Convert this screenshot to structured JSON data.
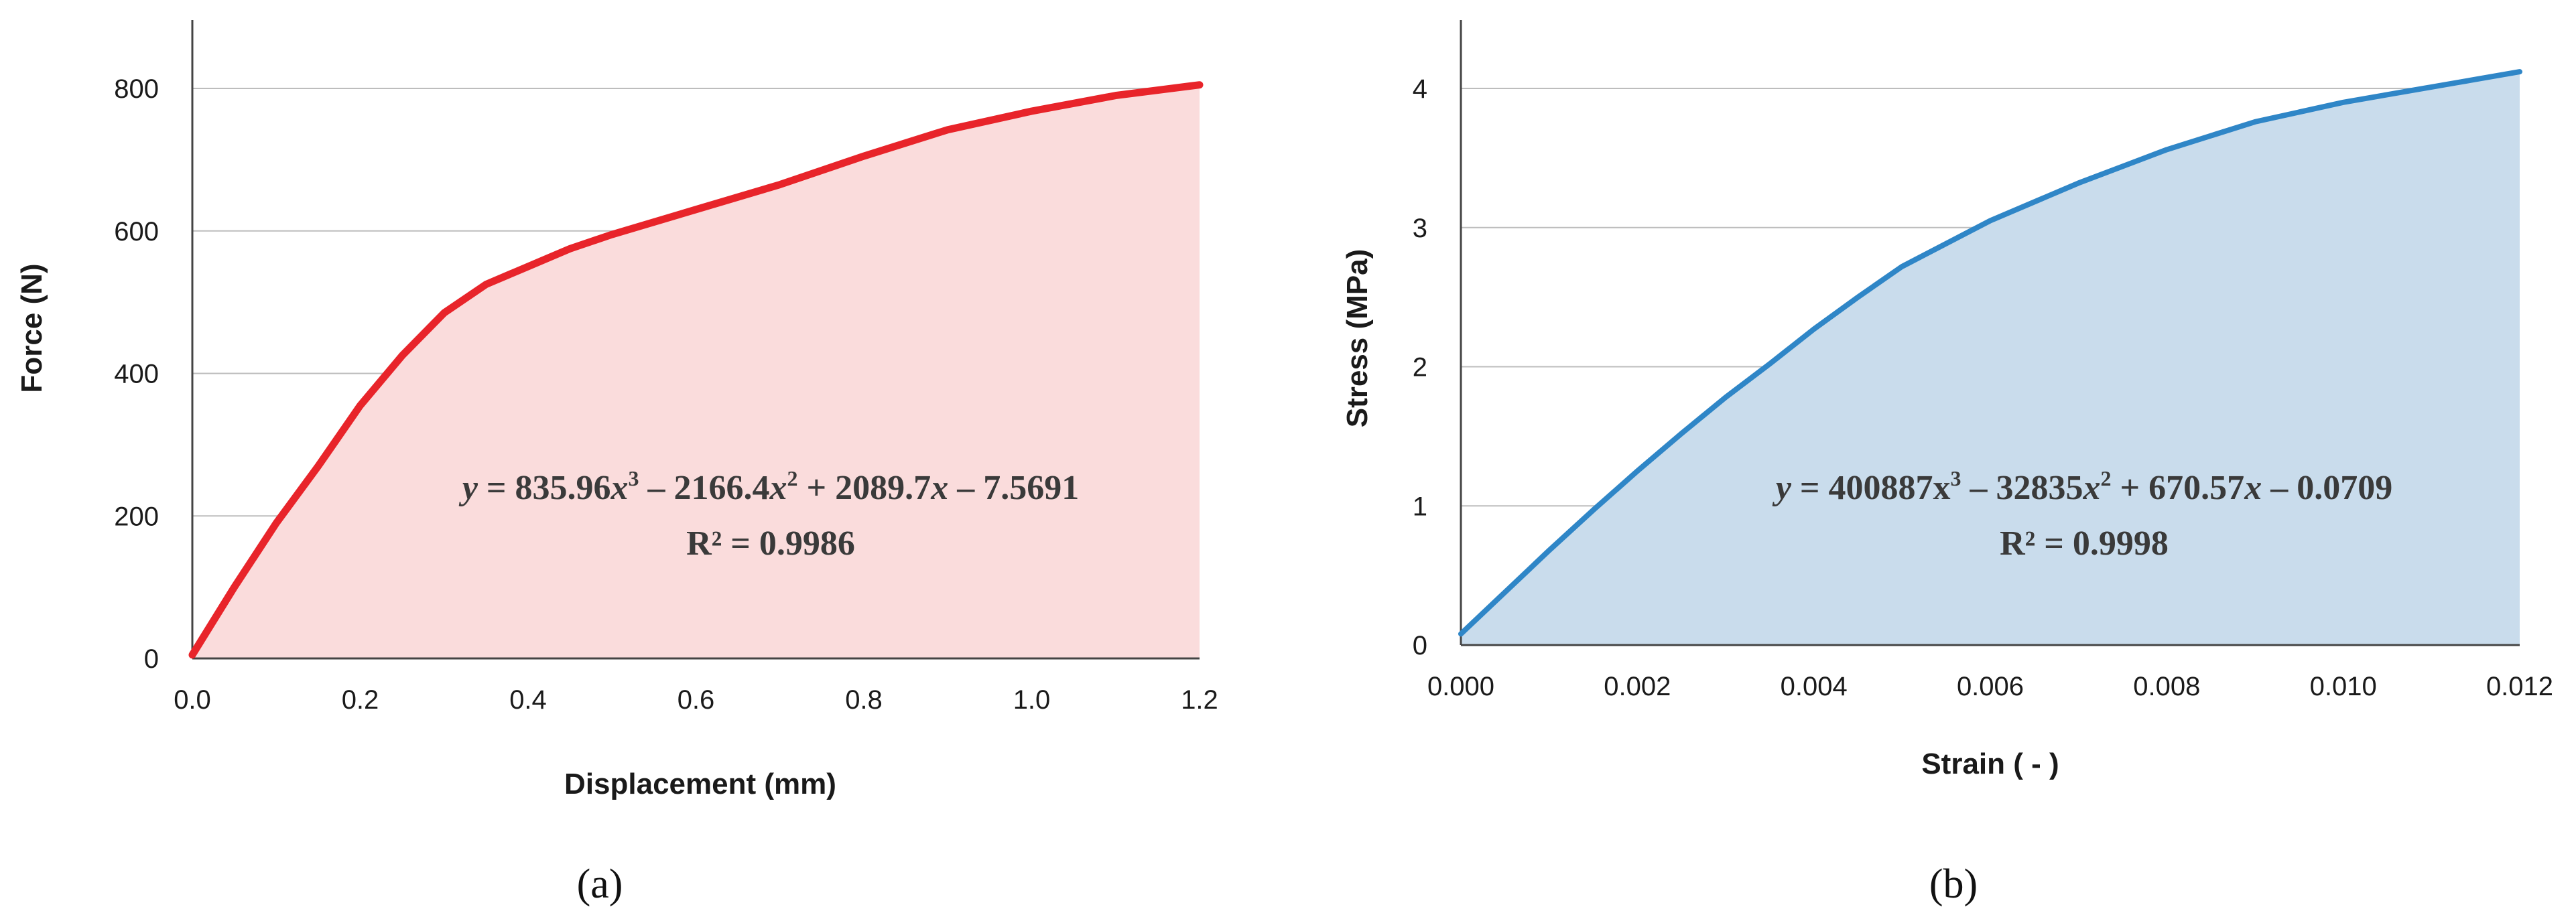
{
  "chart_data": [
    {
      "type": "area",
      "panel_label": "(a)",
      "xlabel": "Displacement (mm)",
      "ylabel": "Force (N)",
      "xlim": [
        0,
        1.2
      ],
      "ylim": [
        0,
        800
      ],
      "xticks": [
        "0.0",
        "0.2",
        "0.4",
        "0.6",
        "0.8",
        "1.0",
        "1.2"
      ],
      "yticks": [
        "0",
        "200",
        "400",
        "600",
        "800"
      ],
      "grid": "horizontal",
      "line_color": "#e8242a",
      "fill_color": "#fadcdc",
      "equation": {
        "lhs": "y",
        "eq": " = 835.96",
        "x3": "x",
        "exp3": "3",
        "t2": " – 2166.4",
        "x2": "x",
        "exp2": "2",
        "t1": " + 2089.7",
        "x1": "x",
        "t0": " – 7.5691"
      },
      "r2": "R² = 0.9986",
      "x": [
        0.0,
        0.05,
        0.1,
        0.15,
        0.2,
        0.25,
        0.3,
        0.35,
        0.4,
        0.45,
        0.5,
        0.6,
        0.7,
        0.8,
        0.9,
        1.0,
        1.1,
        1.2
      ],
      "y": [
        5,
        100,
        190,
        270,
        355,
        425,
        485,
        525,
        550,
        575,
        595,
        630,
        665,
        705,
        742,
        768,
        790,
        805
      ]
    },
    {
      "type": "area",
      "panel_label": "(b)",
      "xlabel": "Strain ( - )",
      "ylabel": "Stress (MPa)",
      "xlim": [
        0,
        0.012
      ],
      "ylim": [
        0,
        4
      ],
      "xticks": [
        "0.000",
        "0.002",
        "0.004",
        "0.006",
        "0.008",
        "0.010",
        "0.012"
      ],
      "yticks": [
        "0",
        "1",
        "2",
        "3",
        "4"
      ],
      "grid": "horizontal",
      "line_color": "#2f86c7",
      "fill_color": "#c9dcec",
      "equation": {
        "lhs": "y",
        "eq": " = 400887x",
        "exp3": "3",
        "t2": " – 32835",
        "x2": "x",
        "exp2": "2",
        "t1": " + 670.57",
        "x1": "x",
        "t0": " – 0.0709"
      },
      "r2": "R² = 0.9998",
      "x": [
        0.0,
        0.0005,
        0.001,
        0.0015,
        0.002,
        0.0025,
        0.003,
        0.0035,
        0.004,
        0.0045,
        0.005,
        0.006,
        0.007,
        0.008,
        0.009,
        0.01,
        0.011,
        0.012
      ],
      "y": [
        0.08,
        0.38,
        0.68,
        0.97,
        1.25,
        1.52,
        1.78,
        2.02,
        2.27,
        2.5,
        2.72,
        3.05,
        3.32,
        3.56,
        3.76,
        3.9,
        4.01,
        4.12
      ]
    }
  ]
}
